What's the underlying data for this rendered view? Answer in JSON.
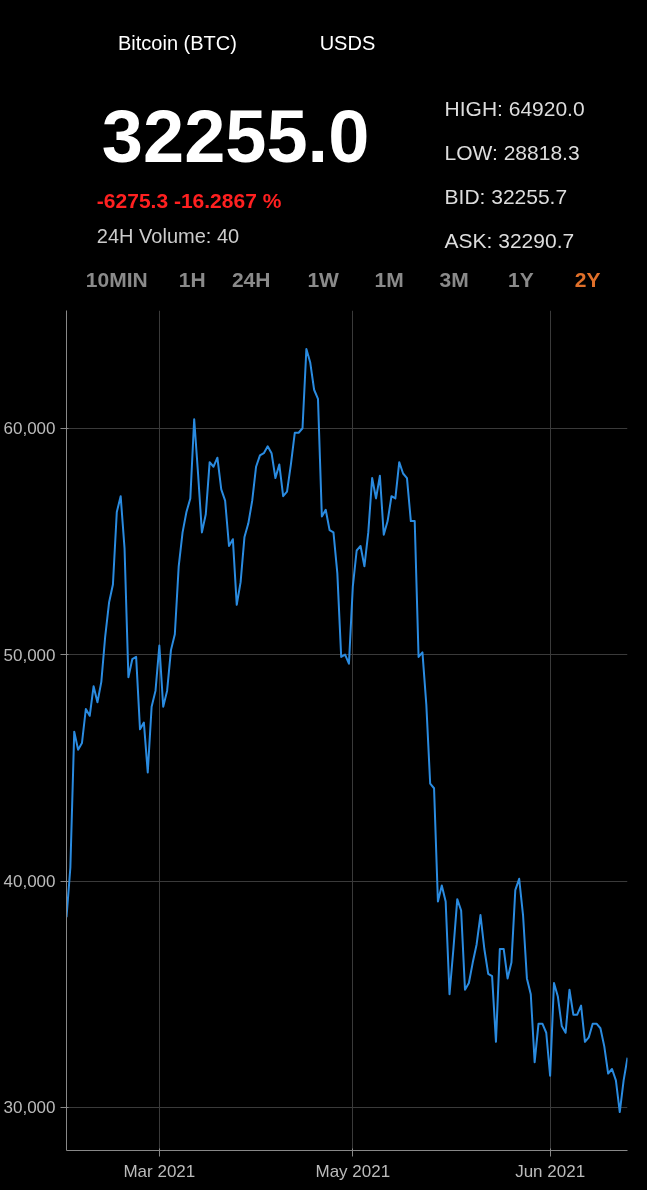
{
  "chart_data": {
    "type": "line",
    "annotations": [
      "Bitcoin (BTC)",
      "USDS",
      "32255.0",
      "-6275.3 -16.2867 %",
      "24H Volume: 40",
      "HIGH: 64920.0",
      "LOW: 28818.3",
      "BID: 32255.7",
      "ASK: 32290.7",
      "10MIN",
      "1H",
      "24H",
      "1W",
      "1M",
      "3M",
      "1Y",
      "2Y"
    ],
    "categories": [
      null,
      null,
      null,
      null,
      null,
      null,
      null,
      null,
      null,
      null,
      null,
      null,
      null,
      null,
      null,
      null,
      null,
      null,
      null,
      null,
      null,
      null,
      null,
      null,
      "Mar 2021",
      null,
      null,
      null,
      null,
      null,
      null,
      null,
      null,
      null,
      null,
      null,
      null,
      null,
      null,
      null,
      null,
      null,
      null,
      null,
      null,
      null,
      null,
      null,
      null,
      null,
      null,
      null,
      null,
      null,
      null,
      null,
      null,
      null,
      null,
      null,
      null,
      null,
      null,
      null,
      null,
      null,
      null,
      null,
      null,
      null,
      null,
      null,
      null,
      null,
      "May 2021",
      null,
      null,
      null,
      null,
      null,
      null,
      null,
      null,
      null,
      null,
      null,
      null,
      null,
      null,
      null,
      null,
      null,
      null,
      null,
      null,
      null,
      null,
      null,
      null,
      null,
      null,
      null,
      null,
      null,
      null,
      null,
      null,
      null,
      null,
      null,
      null,
      null,
      null,
      null,
      null,
      null,
      null,
      null,
      null,
      null,
      null,
      null,
      null,
      null,
      null,
      "Jun 2021",
      null,
      null,
      null,
      null,
      null,
      null,
      null,
      null,
      null,
      null,
      null,
      null,
      null,
      null,
      null,
      null,
      null,
      null,
      null,
      null
    ],
    "series": [
      {
        "color": "#2a8be0",
        "values": [
          38400,
          40600,
          46600,
          45800,
          46100,
          47600,
          47300,
          48600,
          47900,
          48800,
          50800,
          52300,
          53100,
          56300,
          57000,
          54700,
          49000,
          49800,
          49900,
          46700,
          47000,
          44800,
          47700,
          48400,
          50400,
          47700,
          48400,
          50200,
          50900,
          53900,
          55400,
          56300,
          56900,
          60400,
          58000,
          55400,
          56200,
          58500,
          58300,
          58700,
          57300,
          56800,
          54800,
          55100,
          52200,
          53200,
          55200,
          55800,
          56800,
          58300,
          58800,
          58900,
          59200,
          58900,
          57800,
          58400,
          57000,
          57200,
          58400,
          59800,
          59800,
          60000,
          63500,
          62900,
          61700,
          61300,
          56100,
          56400,
          55500,
          55400,
          53600,
          49900,
          50000,
          49600,
          53000,
          54600,
          54800,
          53900,
          55400,
          57800,
          56900,
          57900,
          55300,
          55900,
          57000,
          56900,
          58500,
          58000,
          57800,
          55900,
          55900,
          49900,
          50100,
          47800,
          44300,
          44100,
          39100,
          39800,
          39100,
          35000,
          37000,
          39200,
          38700,
          35200,
          35500,
          36400,
          37200,
          38500,
          37000,
          35900,
          35800,
          32900,
          37000,
          37000,
          35700,
          36400,
          39600,
          40100,
          38500,
          35700,
          35000,
          32000,
          33700,
          33700,
          33300,
          31400,
          35500,
          34900,
          33600,
          33300,
          35200,
          34100,
          34100,
          34500,
          32900,
          33100,
          33700,
          33700,
          33500,
          32700,
          31500,
          31700,
          31200,
          29800,
          31200,
          32200
        ]
      }
    ],
    "ylim": [
      28100,
      65200
    ],
    "yticks": [
      {
        "value": 30000,
        "label": "30,000"
      },
      {
        "value": 40000,
        "label": "40,000"
      },
      {
        "value": 50000,
        "label": "50,000"
      },
      {
        "value": 60000,
        "label": "60,000"
      }
    ],
    "grid": true,
    "line_style": "solid",
    "marker": "none"
  }
}
